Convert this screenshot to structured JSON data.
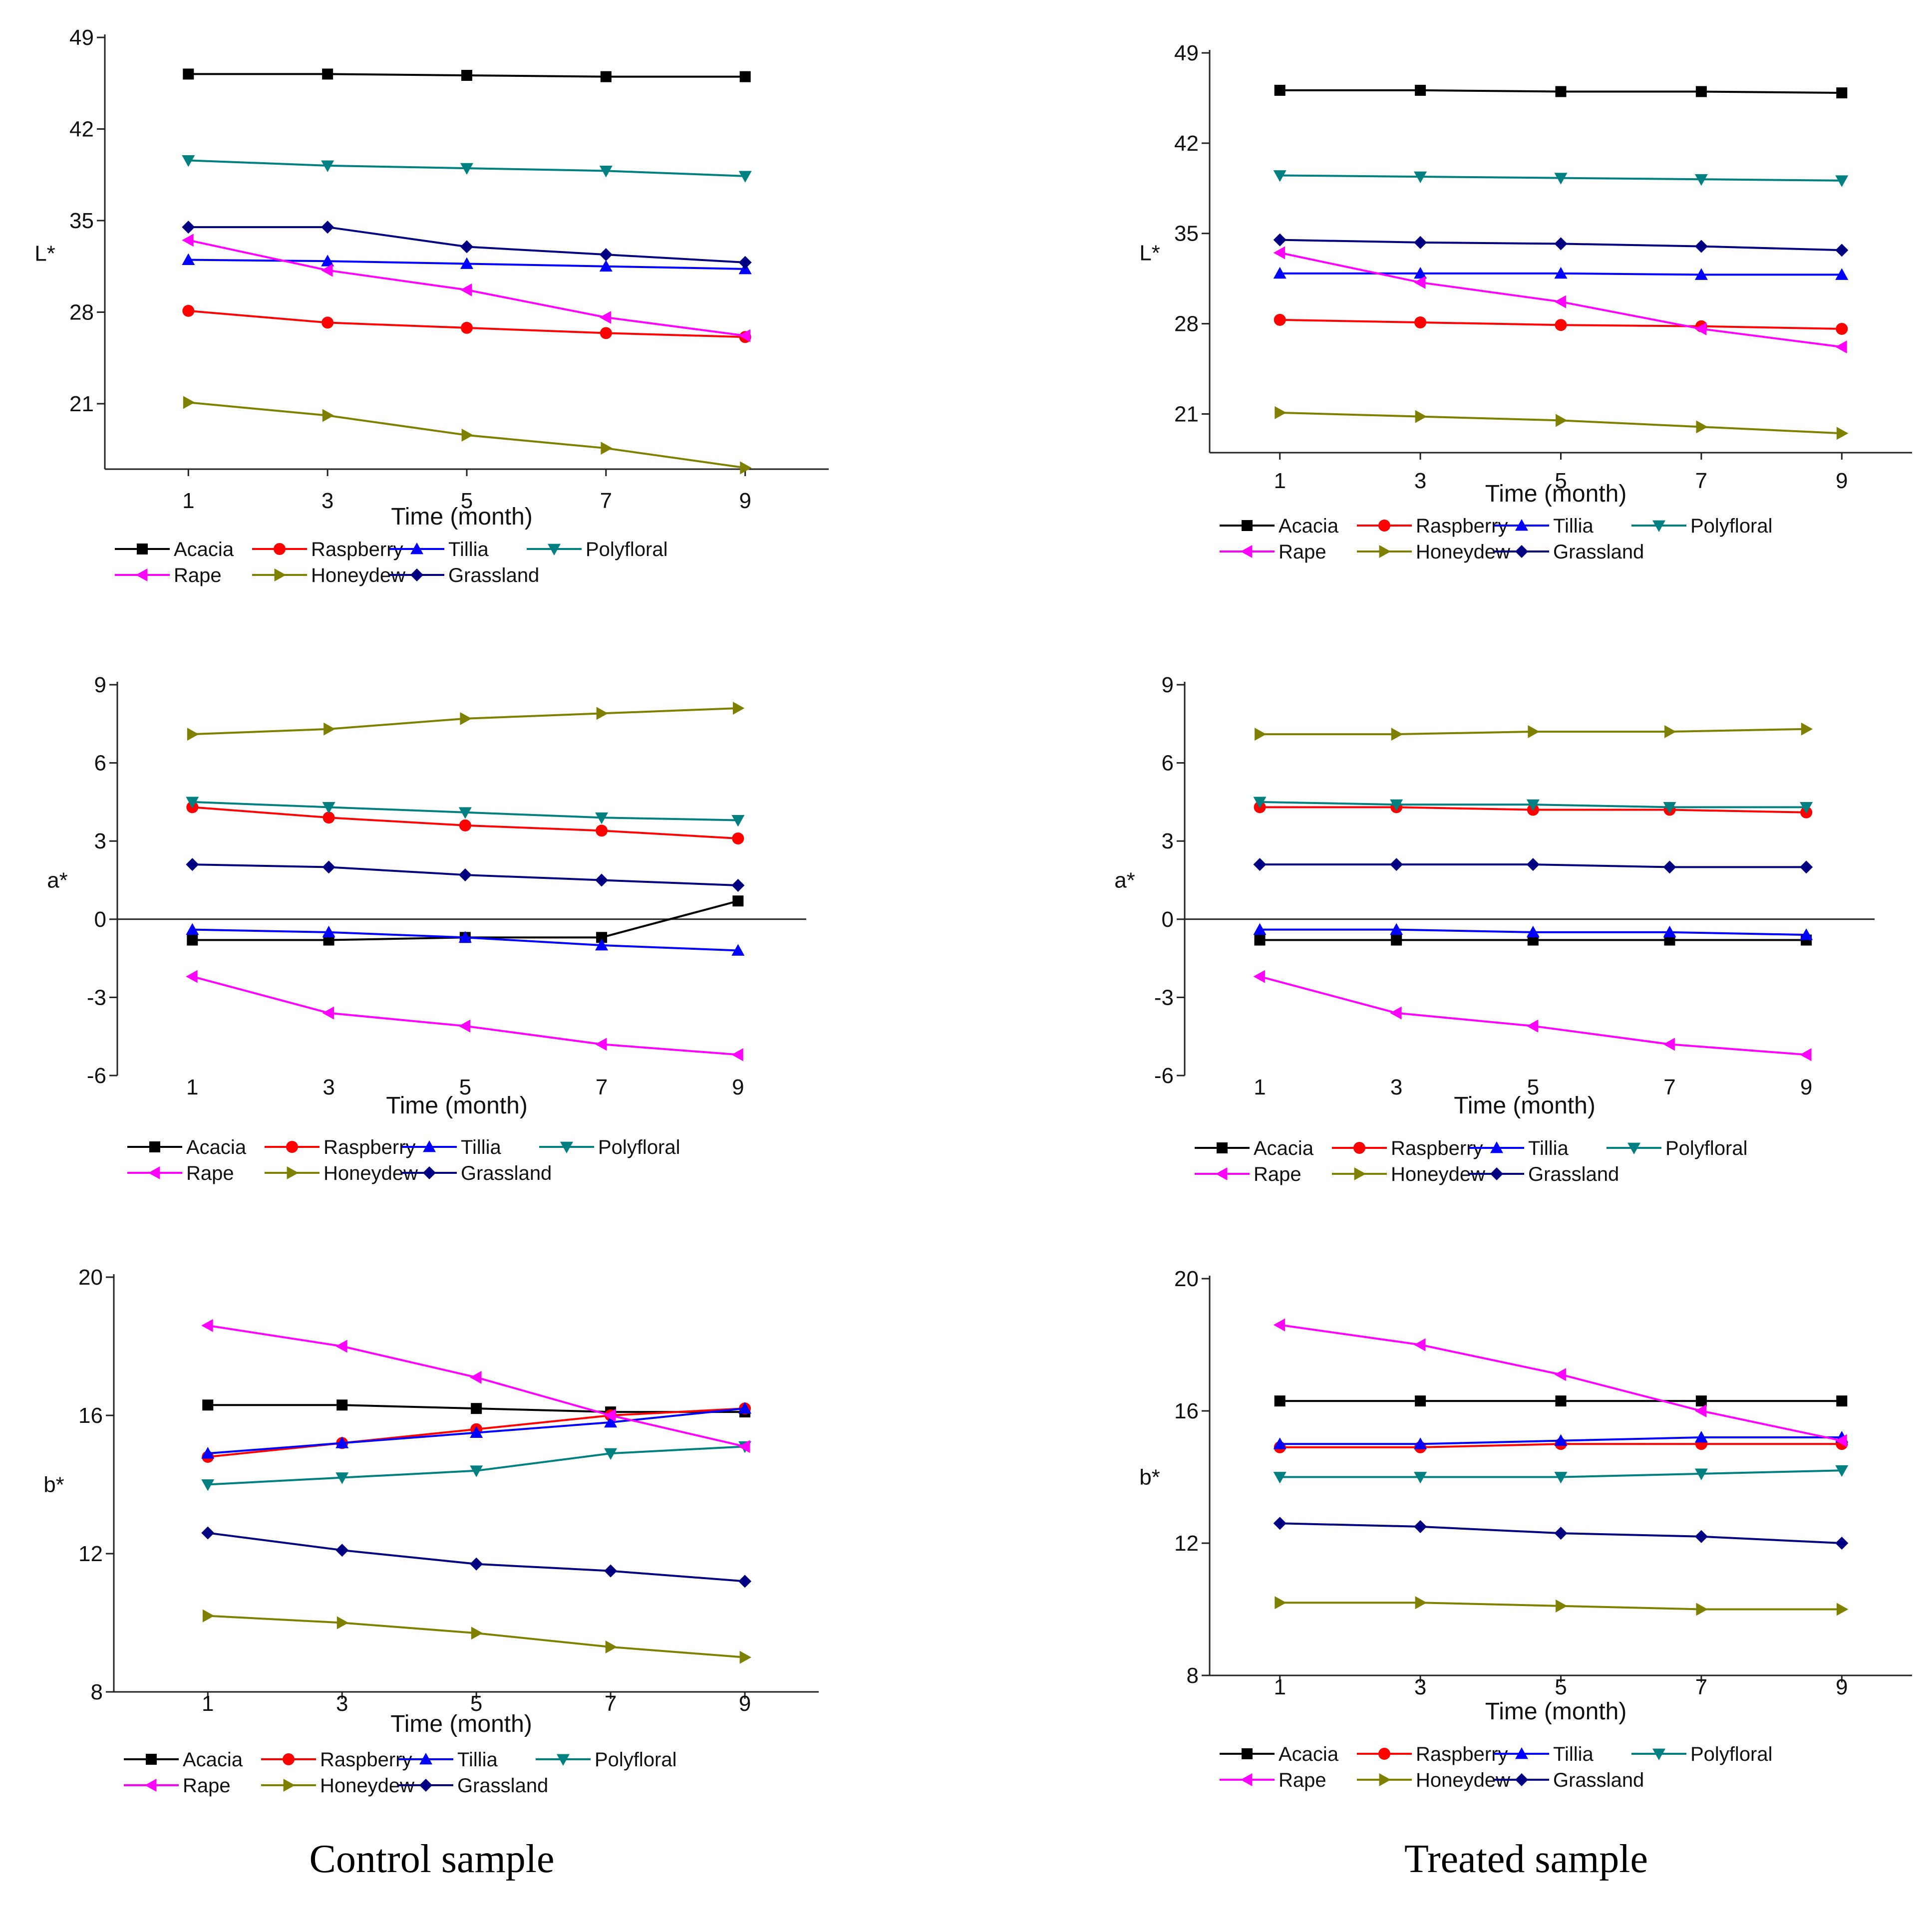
{
  "captions": {
    "control": "Control sample",
    "treated": "Treated sample"
  },
  "series_styles": [
    {
      "name": "Acacia",
      "color": "#000000",
      "marker": "square"
    },
    {
      "name": "Raspberry",
      "color": "#ff0000",
      "marker": "circle"
    },
    {
      "name": "Tillia",
      "color": "#0000ff",
      "marker": "tri-up"
    },
    {
      "name": "Polyfloral",
      "color": "#008080",
      "marker": "tri-down"
    },
    {
      "name": "Rape",
      "color": "#ff00ff",
      "marker": "tri-left"
    },
    {
      "name": "Honeydew",
      "color": "#808000",
      "marker": "tri-right"
    },
    {
      "name": "Grassland",
      "color": "#000080",
      "marker": "diamond"
    }
  ],
  "chart_data": [
    {
      "id": "control-L",
      "type": "line",
      "title": "",
      "ylabel": "L*",
      "xlabel": "Time (month)",
      "x": [
        1,
        3,
        5,
        7,
        9
      ],
      "ylim": [
        16,
        49
      ],
      "yticks": [
        21,
        28,
        35,
        42,
        49
      ],
      "xlim": [
        -0.2,
        10.2
      ],
      "zero_line": false,
      "series": [
        {
          "name": "Acacia",
          "values": [
            46.2,
            46.2,
            46.1,
            46.0,
            46.0
          ]
        },
        {
          "name": "Raspberry",
          "values": [
            28.1,
            27.2,
            26.8,
            26.4,
            26.1
          ]
        },
        {
          "name": "Tillia",
          "values": [
            32.0,
            31.9,
            31.7,
            31.5,
            31.3
          ]
        },
        {
          "name": "Polyfloral",
          "values": [
            39.6,
            39.2,
            39.0,
            38.8,
            38.4
          ]
        },
        {
          "name": "Rape",
          "values": [
            33.5,
            31.2,
            29.7,
            27.6,
            26.2
          ]
        },
        {
          "name": "Honeydew",
          "values": [
            21.1,
            20.1,
            18.6,
            17.6,
            16.1
          ]
        },
        {
          "name": "Grassland",
          "values": [
            34.5,
            34.5,
            33.0,
            32.4,
            31.8
          ]
        }
      ]
    },
    {
      "id": "control-a",
      "type": "line",
      "title": "",
      "ylabel": "a*",
      "xlabel": "Time (month)",
      "x": [
        1,
        3,
        5,
        7,
        9
      ],
      "ylim": [
        -6,
        9
      ],
      "yticks": [
        -6,
        -3,
        0,
        3,
        6,
        9
      ],
      "xlim": [
        -0.1,
        10.0
      ],
      "zero_line": true,
      "series": [
        {
          "name": "Acacia",
          "values": [
            -0.8,
            -0.8,
            -0.7,
            -0.7,
            0.7
          ]
        },
        {
          "name": "Raspberry",
          "values": [
            4.3,
            3.9,
            3.6,
            3.4,
            3.1
          ]
        },
        {
          "name": "Tillia",
          "values": [
            -0.4,
            -0.5,
            -0.7,
            -1.0,
            -1.2
          ]
        },
        {
          "name": "Polyfloral",
          "values": [
            4.5,
            4.3,
            4.1,
            3.9,
            3.8
          ]
        },
        {
          "name": "Rape",
          "values": [
            -2.2,
            -3.6,
            -4.1,
            -4.8,
            -5.2
          ]
        },
        {
          "name": "Honeydew",
          "values": [
            7.1,
            7.3,
            7.7,
            7.9,
            8.1
          ]
        },
        {
          "name": "Grassland",
          "values": [
            2.1,
            2.0,
            1.7,
            1.5,
            1.3
          ]
        }
      ]
    },
    {
      "id": "control-b",
      "type": "line",
      "title": "",
      "ylabel": "b*",
      "xlabel": "Time (month)",
      "x": [
        1,
        3,
        5,
        7,
        9
      ],
      "ylim": [
        8,
        20
      ],
      "yticks": [
        8,
        12,
        16,
        20
      ],
      "xlim": [
        -0.4,
        10.1
      ],
      "zero_line": false,
      "series": [
        {
          "name": "Acacia",
          "values": [
            16.3,
            16.3,
            16.2,
            16.1,
            16.1
          ]
        },
        {
          "name": "Raspberry",
          "values": [
            14.8,
            15.2,
            15.6,
            16.0,
            16.2
          ]
        },
        {
          "name": "Tillia",
          "values": [
            14.9,
            15.2,
            15.5,
            15.8,
            16.2
          ]
        },
        {
          "name": "Polyfloral",
          "values": [
            14.0,
            14.2,
            14.4,
            14.9,
            15.1
          ]
        },
        {
          "name": "Rape",
          "values": [
            18.6,
            18.0,
            17.1,
            16.0,
            15.1
          ]
        },
        {
          "name": "Honeydew",
          "values": [
            10.2,
            10.0,
            9.7,
            9.3,
            9.0
          ]
        },
        {
          "name": "Grassland",
          "values": [
            12.6,
            12.1,
            11.7,
            11.5,
            11.2
          ]
        }
      ]
    },
    {
      "id": "treated-L",
      "type": "line",
      "title": "",
      "ylabel": "L*",
      "xlabel": "Time (month)",
      "x": [
        1,
        3,
        5,
        7,
        9
      ],
      "ylim": [
        18,
        49
      ],
      "yticks": [
        21,
        28,
        35,
        42,
        49
      ],
      "xlim": [
        -0.0,
        10.0
      ],
      "zero_line": false,
      "series": [
        {
          "name": "Acacia",
          "values": [
            46.1,
            46.1,
            46.0,
            46.0,
            45.9
          ]
        },
        {
          "name": "Raspberry",
          "values": [
            28.3,
            28.1,
            27.9,
            27.8,
            27.6
          ]
        },
        {
          "name": "Tillia",
          "values": [
            31.9,
            31.9,
            31.9,
            31.8,
            31.8
          ]
        },
        {
          "name": "Polyfloral",
          "values": [
            39.5,
            39.4,
            39.3,
            39.2,
            39.1
          ]
        },
        {
          "name": "Rape",
          "values": [
            33.5,
            31.2,
            29.7,
            27.6,
            26.2
          ]
        },
        {
          "name": "Honeydew",
          "values": [
            21.1,
            20.8,
            20.5,
            20.0,
            19.5
          ]
        },
        {
          "name": "Grassland",
          "values": [
            34.5,
            34.3,
            34.2,
            34.0,
            33.7
          ]
        }
      ]
    },
    {
      "id": "treated-a",
      "type": "line",
      "title": "",
      "ylabel": "a*",
      "xlabel": "Time (month)",
      "x": [
        1,
        3,
        5,
        7,
        9
      ],
      "ylim": [
        -6,
        9
      ],
      "yticks": [
        -6,
        -3,
        0,
        3,
        6,
        9
      ],
      "xlim": [
        -0.1,
        10.0
      ],
      "zero_line": true,
      "series": [
        {
          "name": "Acacia",
          "values": [
            -0.8,
            -0.8,
            -0.8,
            -0.8,
            -0.8
          ]
        },
        {
          "name": "Raspberry",
          "values": [
            4.3,
            4.3,
            4.2,
            4.2,
            4.1
          ]
        },
        {
          "name": "Tillia",
          "values": [
            -0.4,
            -0.4,
            -0.5,
            -0.5,
            -0.6
          ]
        },
        {
          "name": "Polyfloral",
          "values": [
            4.5,
            4.4,
            4.4,
            4.3,
            4.3
          ]
        },
        {
          "name": "Rape",
          "values": [
            -2.2,
            -3.6,
            -4.1,
            -4.8,
            -5.2
          ]
        },
        {
          "name": "Honeydew",
          "values": [
            7.1,
            7.1,
            7.2,
            7.2,
            7.3
          ]
        },
        {
          "name": "Grassland",
          "values": [
            2.1,
            2.1,
            2.1,
            2.0,
            2.0
          ]
        }
      ]
    },
    {
      "id": "treated-b",
      "type": "line",
      "title": "",
      "ylabel": "b*",
      "xlabel": "Time (month)",
      "x": [
        1,
        3,
        5,
        7,
        9
      ],
      "ylim": [
        8,
        20
      ],
      "yticks": [
        8,
        12,
        16,
        20
      ],
      "xlim": [
        -0.0,
        10.0
      ],
      "zero_line": false,
      "series": [
        {
          "name": "Acacia",
          "values": [
            16.3,
            16.3,
            16.3,
            16.3,
            16.3
          ]
        },
        {
          "name": "Raspberry",
          "values": [
            14.9,
            14.9,
            15.0,
            15.0,
            15.0
          ]
        },
        {
          "name": "Tillia",
          "values": [
            15.0,
            15.0,
            15.1,
            15.2,
            15.2
          ]
        },
        {
          "name": "Polyfloral",
          "values": [
            14.0,
            14.0,
            14.0,
            14.1,
            14.2
          ]
        },
        {
          "name": "Rape",
          "values": [
            18.6,
            18.0,
            17.1,
            16.0,
            15.1
          ]
        },
        {
          "name": "Honeydew",
          "values": [
            10.2,
            10.2,
            10.1,
            10.0,
            10.0
          ]
        },
        {
          "name": "Grassland",
          "values": [
            12.6,
            12.5,
            12.3,
            12.2,
            12.0
          ]
        }
      ]
    }
  ]
}
